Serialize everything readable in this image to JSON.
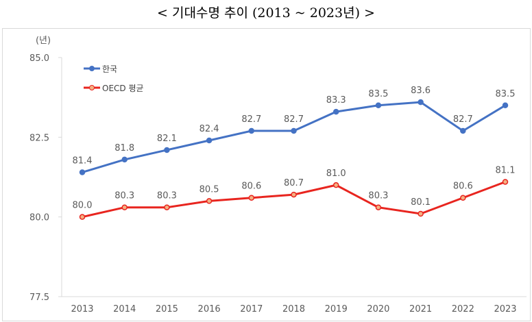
{
  "title": "< 기대수명 추이 (2013 ~ 2023년) >",
  "chart_data": {
    "type": "line",
    "title": "< 기대수명 추이 (2013 ~ 2023년) >",
    "ylabel": "(년)",
    "xlabel": "",
    "x": [
      "2013",
      "2014",
      "2015",
      "2016",
      "2017",
      "2018",
      "2019",
      "2020",
      "2021",
      "2022",
      "2023"
    ],
    "ylim": [
      77.5,
      85.0
    ],
    "yticks": [
      "77.5",
      "80.0",
      "82.5",
      "85.0"
    ],
    "grid": false,
    "legend": "top-left",
    "series": [
      {
        "name": "한국",
        "color": "#4472c4",
        "values": [
          81.4,
          81.8,
          82.1,
          82.4,
          82.7,
          82.7,
          83.3,
          83.5,
          83.6,
          82.7,
          83.5
        ],
        "labels": [
          "81.4",
          "81.8",
          "82.1",
          "82.4",
          "82.7",
          "82.7",
          "83.3",
          "83.5",
          "83.6",
          "82.7",
          "83.5"
        ]
      },
      {
        "name": "OECD 평균",
        "color": "#e8251f",
        "values": [
          80.0,
          80.3,
          80.3,
          80.5,
          80.6,
          80.7,
          81.0,
          80.3,
          80.1,
          80.6,
          81.1
        ],
        "labels": [
          "80.0",
          "80.3",
          "80.3",
          "80.5",
          "80.6",
          "80.7",
          "81.0",
          "80.3",
          "80.1",
          "80.6",
          "81.1"
        ]
      }
    ]
  }
}
